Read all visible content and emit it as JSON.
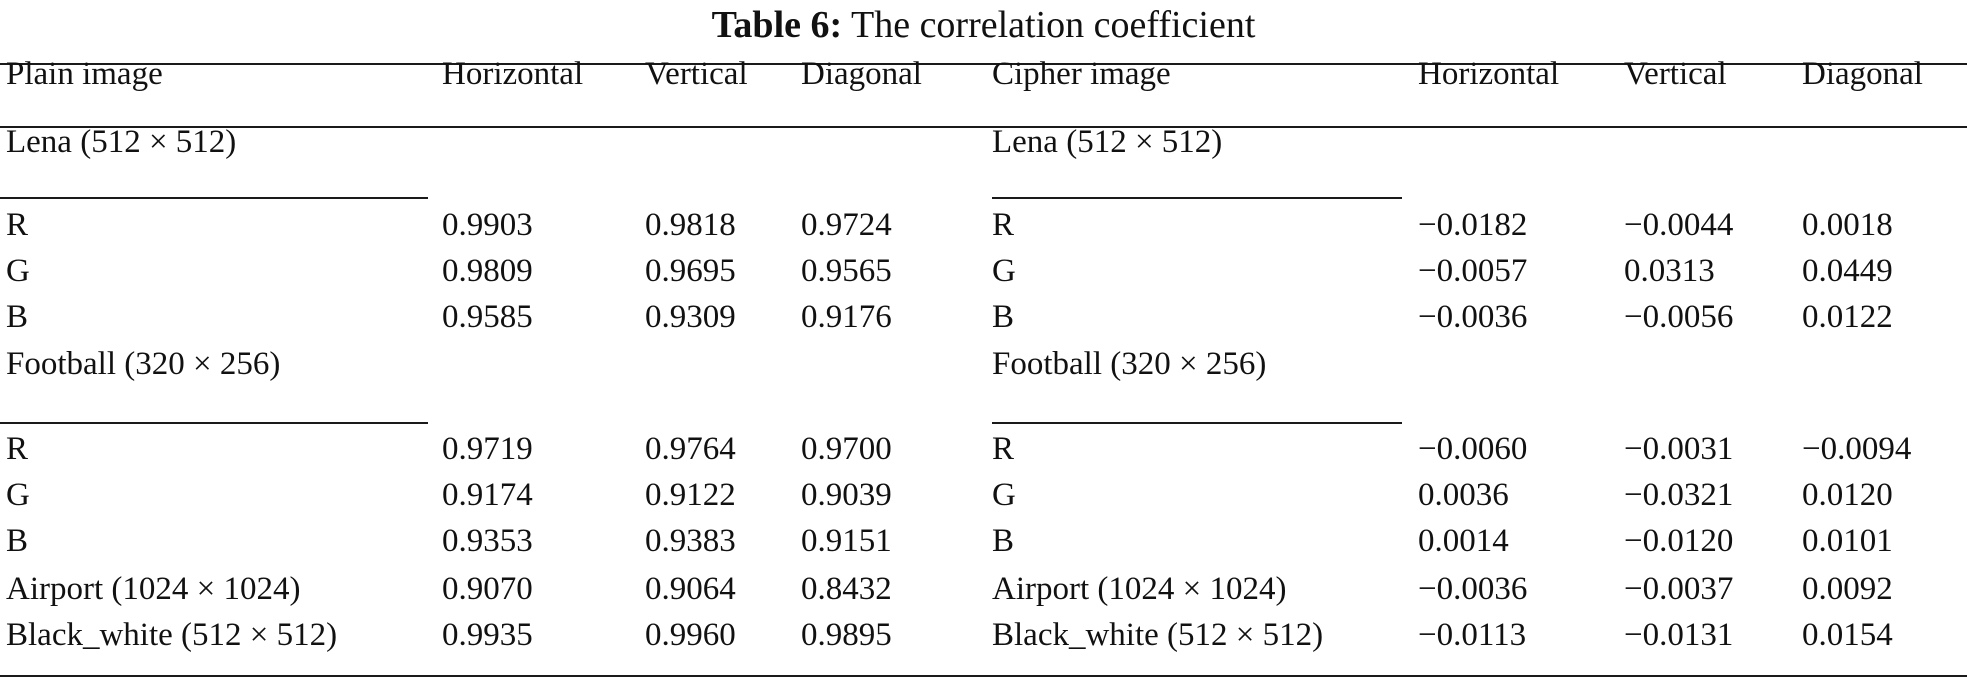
{
  "caption": {
    "label": "Table 6:",
    "text": "The correlation coefficient"
  },
  "headers": {
    "plain": [
      "Plain image",
      "Horizontal",
      "Vertical",
      "Diagonal"
    ],
    "cipher": [
      "Cipher image",
      "Horizontal",
      "Vertical",
      "Diagonal"
    ]
  },
  "rows": [
    {
      "plain": [
        "Lena (512 × 512)",
        "",
        "",
        ""
      ],
      "cipher": [
        "Lena (512 × 512)",
        "",
        "",
        ""
      ]
    },
    {
      "plain": [
        "R",
        "0.9903",
        "0.9818",
        "0.9724"
      ],
      "cipher": [
        "R",
        "−0.0182",
        "−0.0044",
        "0.0018"
      ]
    },
    {
      "plain": [
        "G",
        "0.9809",
        "0.9695",
        "0.9565"
      ],
      "cipher": [
        "G",
        "−0.0057",
        "0.0313",
        "0.0449"
      ]
    },
    {
      "plain": [
        "B",
        "0.9585",
        "0.9309",
        "0.9176"
      ],
      "cipher": [
        "B",
        "−0.0036",
        "−0.0056",
        "0.0122"
      ]
    },
    {
      "plain": [
        "Football (320 × 256)",
        "",
        "",
        ""
      ],
      "cipher": [
        "Football (320 × 256)",
        "",
        "",
        ""
      ]
    },
    {
      "plain": [
        "R",
        "0.9719",
        "0.9764",
        "0.9700"
      ],
      "cipher": [
        "R",
        "−0.0060",
        "−0.0031",
        "−0.0094"
      ]
    },
    {
      "plain": [
        "G",
        "0.9174",
        "0.9122",
        "0.9039"
      ],
      "cipher": [
        "G",
        "0.0036",
        "−0.0321",
        "0.0120"
      ]
    },
    {
      "plain": [
        "B",
        "0.9353",
        "0.9383",
        "0.9151"
      ],
      "cipher": [
        "B",
        "0.0014",
        "−0.0120",
        "0.0101"
      ]
    },
    {
      "plain": [
        "Airport (1024 × 1024)",
        "0.9070",
        "0.9064",
        "0.8432"
      ],
      "cipher": [
        "Airport (1024 × 1024)",
        "−0.0036",
        "−0.0037",
        "0.0092"
      ]
    },
    {
      "plain": [
        "Black_white (512 × 512)",
        "0.9935",
        "0.9960",
        "0.9895"
      ],
      "cipher": [
        "Black_white (512 × 512)",
        "−0.0113",
        "−0.0131",
        "0.0154"
      ]
    }
  ]
}
